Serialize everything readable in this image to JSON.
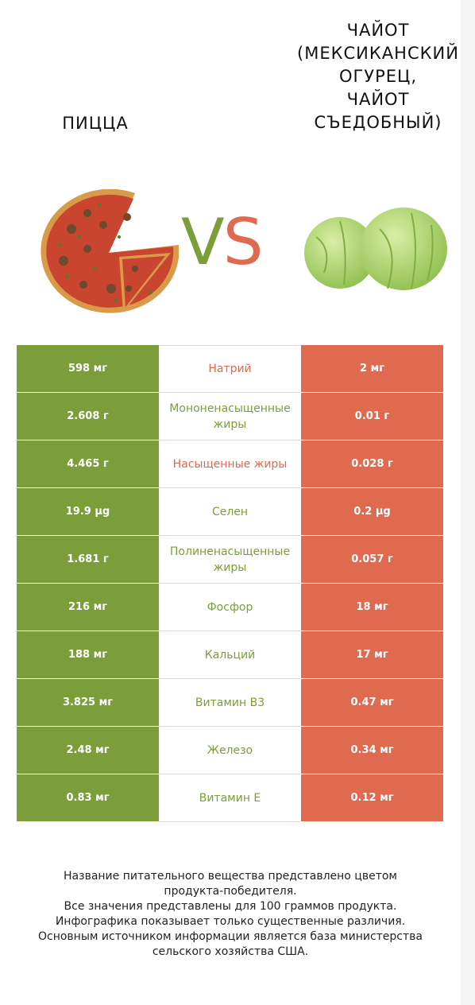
{
  "left_food": {
    "name": "Пицца"
  },
  "right_food": {
    "name_lines": [
      "Чайот",
      "(мексиканский",
      "огурец,",
      "чайот",
      "съедобный)"
    ]
  },
  "vs": {
    "v": "V",
    "s": "S"
  },
  "colors": {
    "green": "#7b9e3a",
    "red": "#e06a50"
  },
  "rows": [
    {
      "left": "598 мг",
      "nutrient": "Натрий",
      "right": "2 мг",
      "winner": "red"
    },
    {
      "left": "2.608 г",
      "nutrient": "Мононенасыщенные жиры",
      "right": "0.01 г",
      "winner": "green"
    },
    {
      "left": "4.465 г",
      "nutrient": "Насыщенные жиры",
      "right": "0.028 г",
      "winner": "red"
    },
    {
      "left": "19.9 µg",
      "nutrient": "Селен",
      "right": "0.2 µg",
      "winner": "green"
    },
    {
      "left": "1.681 г",
      "nutrient": "Полиненасыщенные жиры",
      "right": "0.057 г",
      "winner": "green"
    },
    {
      "left": "216 мг",
      "nutrient": "Фосфор",
      "right": "18 мг",
      "winner": "green"
    },
    {
      "left": "188 мг",
      "nutrient": "Кальций",
      "right": "17 мг",
      "winner": "green"
    },
    {
      "left": "3.825 мг",
      "nutrient": "Витамин B3",
      "right": "0.47 мг",
      "winner": "green"
    },
    {
      "left": "2.48 мг",
      "nutrient": "Железо",
      "right": "0.34 мг",
      "winner": "green"
    },
    {
      "left": "0.83 мг",
      "nutrient": "Витамин E",
      "right": "0.12 мг",
      "winner": "green"
    }
  ],
  "footer": {
    "lines": [
      "Название питательного вещества представлено цветом",
      "продукта-победителя.",
      "Все значения представлены для 100 граммов продукта.",
      "Инфографика показывает только существенные различия.",
      "Основным источником информации является база министерства",
      "сельского хозяйства США."
    ]
  }
}
